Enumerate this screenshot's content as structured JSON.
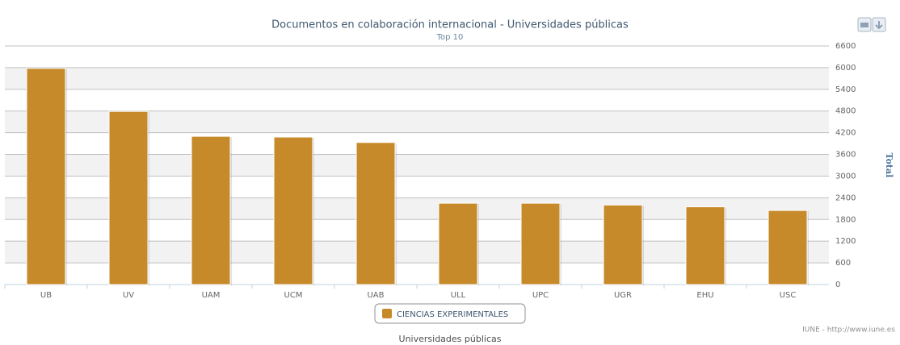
{
  "chart_data": {
    "type": "bar",
    "title": "Documentos en colaboración internacional - Universidades públicas",
    "subtitle": "Top 10",
    "x_label": "Universidades públicas",
    "y_label": "Total",
    "credits": "IUNE - http://www.iune.es",
    "categories": [
      "UB",
      "UV",
      "UAM",
      "UCM",
      "UAB",
      "ULL",
      "UPC",
      "UGR",
      "EHU",
      "USC"
    ],
    "series": [
      {
        "name": "CIENCIAS EXPERIMENTALES",
        "color": "#c68a2b",
        "values": [
          5980,
          4790,
          4100,
          4080,
          3930,
          2250,
          2250,
          2200,
          2150,
          2050
        ]
      }
    ],
    "ylim": [
      0,
      6600
    ],
    "yticks": [
      0,
      600,
      1200,
      1800,
      2400,
      3000,
      3600,
      4200,
      4800,
      5400,
      6000,
      6600
    ],
    "grid": true
  }
}
